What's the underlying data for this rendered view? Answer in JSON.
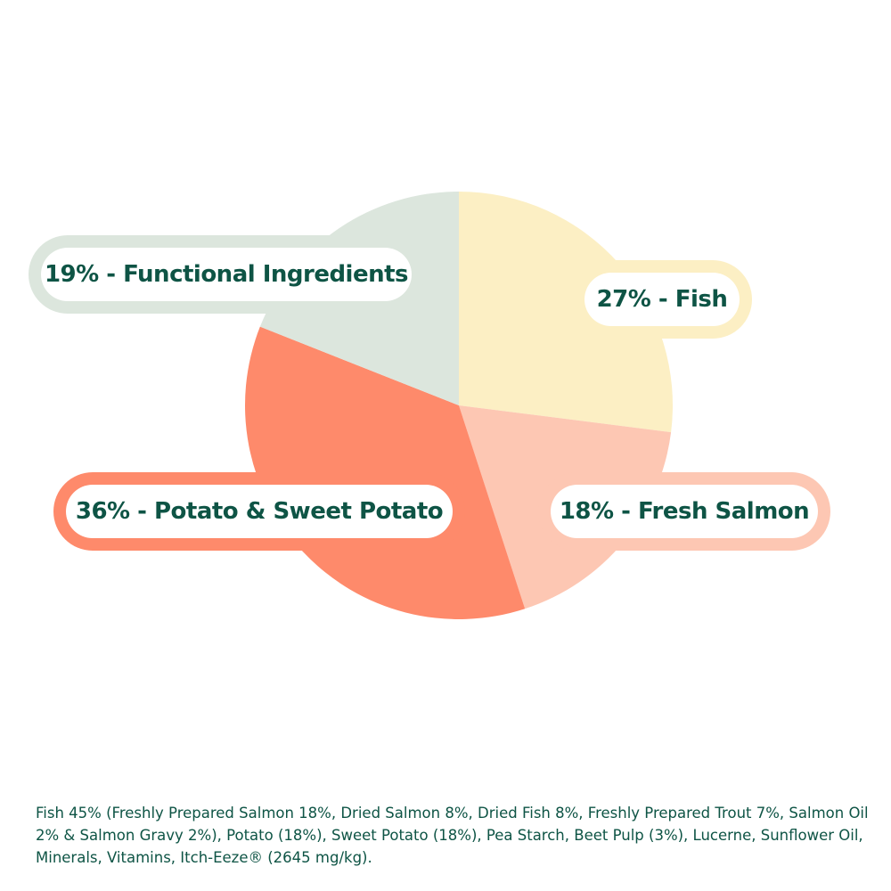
{
  "chart_data": {
    "type": "pie",
    "start_angle_deg": 0,
    "direction": "clockwise",
    "slices": [
      {
        "label": "27% - Fish",
        "value": 27,
        "color": "#fcefc4"
      },
      {
        "label": "18% - Fresh Salmon",
        "value": 18,
        "color": "#fdc7b3"
      },
      {
        "label": "36% - Potato & Sweet Potato",
        "value": 36,
        "color": "#fe8a6b"
      },
      {
        "label": "19% - Functional Ingredients",
        "value": 19,
        "color": "#dce6dd"
      }
    ],
    "label_text_color": "#0e5445"
  },
  "ingredients_text": "Fish 45% (Freshly Prepared Salmon 18%, Dried Salmon 8%, Dried Fish 8%, Freshly Prepared Trout 7%, Salmon Oil 2% & Salmon Gravy 2%), Potato (18%), Sweet Potato (18%), Pea Starch, Beet Pulp (3%), Lucerne, Sunflower Oil, Minerals, Vitamins, Itch-Eeze® (2645 mg/kg)."
}
